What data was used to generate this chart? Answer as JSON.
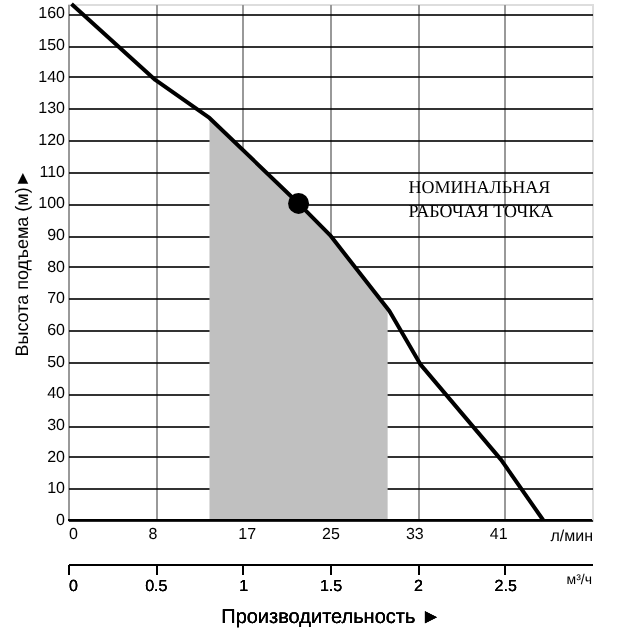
{
  "chart_data": {
    "type": "line",
    "xlabel": "Производительность ►",
    "ylabel": "Высота подъема (м)►",
    "x2label": "л/мин",
    "series": [
      {
        "type": "area",
        "color": "#c0c0c0",
        "x": [
          0.81,
          1.0,
          1.32,
          1.5,
          1.83
        ],
        "values": [
          127,
          117,
          100,
          90,
          66
        ]
      },
      {
        "color": "#000000",
        "x": [
          0.02,
          0.5,
          0.81,
          1.32,
          1.5,
          1.84,
          2.02,
          2.48,
          2.72
        ],
        "values": [
          163,
          139,
          127,
          100,
          90,
          66,
          49,
          19,
          0
        ]
      },
      {
        "type": "scatter",
        "color": "#000000",
        "marker": "circle",
        "x": [
          1.32
        ],
        "values": [
          100
        ]
      }
    ],
    "xlim": [
      0,
      3
    ],
    "xticks": [
      0,
      0.5,
      1,
      1.5,
      2,
      2.5
    ],
    "x2lim": [
      0,
      50
    ],
    "x2ticks": [
      0,
      8,
      17,
      25,
      33,
      41
    ],
    "ylim": [
      0,
      163
    ],
    "yticks": [
      0,
      10,
      20,
      30,
      40,
      50,
      60,
      70,
      80,
      90,
      100,
      110,
      120,
      130,
      140,
      150,
      160
    ],
    "grid": true,
    "annotations": [
      "НОМИНАЛЬНАЯ\nРАБОЧАЯ ТОЧКА",
      "м³/ч"
    ]
  }
}
